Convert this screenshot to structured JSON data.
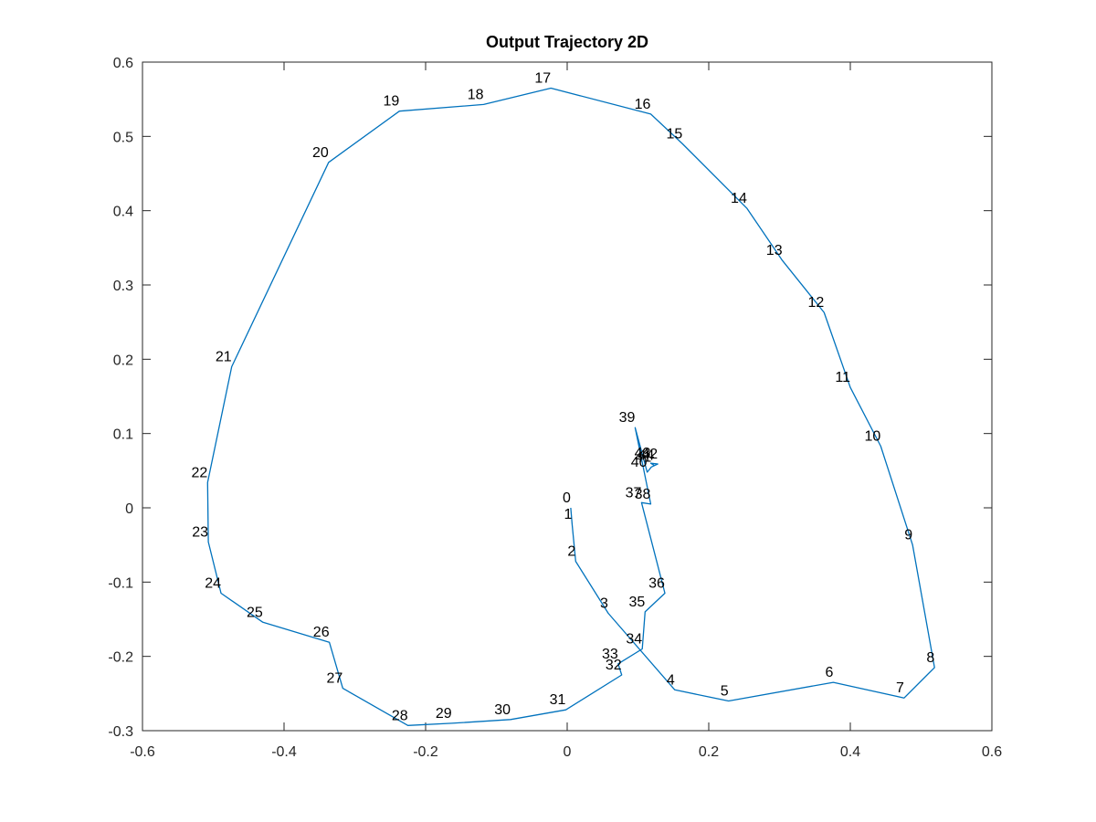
{
  "chart_data": {
    "type": "line",
    "title": "Output Trajectory 2D",
    "xlabel": "",
    "ylabel": "",
    "xlim": [
      -0.6,
      0.6
    ],
    "ylim": [
      -0.3,
      0.6
    ],
    "xticks": [
      -0.6,
      -0.4,
      -0.2,
      0,
      0.2,
      0.4,
      0.6
    ],
    "xtick_labels": [
      "-0.6",
      "-0.4",
      "-0.2",
      "0",
      "0.2",
      "0.4",
      "0.6"
    ],
    "yticks": [
      -0.3,
      -0.2,
      -0.1,
      0,
      0.1,
      0.2,
      0.3,
      0.4,
      0.5,
      0.6
    ],
    "ytick_labels": [
      "-0.3",
      "-0.2",
      "-0.1",
      "0",
      "0.1",
      "0.2",
      "0.3",
      "0.4",
      "0.5",
      "0.6"
    ],
    "grid": false,
    "line_color": "#0072BD",
    "series": [
      {
        "points": [
          {
            "label": "0",
            "x": 0.005,
            "y": 0.0
          },
          {
            "label": "1",
            "x": 0.007,
            "y": -0.022
          },
          {
            "label": "2",
            "x": 0.012,
            "y": -0.072
          },
          {
            "label": "3",
            "x": 0.058,
            "y": -0.142
          },
          {
            "label": "4",
            "x": 0.152,
            "y": -0.245
          },
          {
            "label": "5",
            "x": 0.228,
            "y": -0.26
          },
          {
            "label": "6",
            "x": 0.376,
            "y": -0.235
          },
          {
            "label": "7",
            "x": 0.476,
            "y": -0.256
          },
          {
            "label": "8",
            "x": 0.519,
            "y": -0.215
          },
          {
            "label": "9",
            "x": 0.488,
            "y": -0.05
          },
          {
            "label": "10",
            "x": 0.443,
            "y": 0.083
          },
          {
            "label": "11",
            "x": 0.4,
            "y": 0.162
          },
          {
            "label": "12",
            "x": 0.363,
            "y": 0.263
          },
          {
            "label": "13",
            "x": 0.304,
            "y": 0.333
          },
          {
            "label": "14",
            "x": 0.254,
            "y": 0.403
          },
          {
            "label": "15",
            "x": 0.163,
            "y": 0.49
          },
          {
            "label": "16",
            "x": 0.118,
            "y": 0.53
          },
          {
            "label": "17",
            "x": -0.023,
            "y": 0.565
          },
          {
            "label": "18",
            "x": -0.118,
            "y": 0.543
          },
          {
            "label": "19",
            "x": -0.237,
            "y": 0.534
          },
          {
            "label": "20",
            "x": -0.337,
            "y": 0.465
          },
          {
            "label": "21",
            "x": -0.474,
            "y": 0.19
          },
          {
            "label": "22",
            "x": -0.508,
            "y": 0.034
          },
          {
            "label": "23",
            "x": -0.507,
            "y": -0.046
          },
          {
            "label": "24",
            "x": -0.489,
            "y": -0.115
          },
          {
            "label": "25",
            "x": -0.43,
            "y": -0.154
          },
          {
            "label": "26",
            "x": -0.336,
            "y": -0.181
          },
          {
            "label": "27",
            "x": -0.317,
            "y": -0.243
          },
          {
            "label": "28",
            "x": -0.225,
            "y": -0.293
          },
          {
            "label": "29",
            "x": -0.163,
            "y": -0.29
          },
          {
            "label": "30",
            "x": -0.08,
            "y": -0.285
          },
          {
            "label": "31",
            "x": -0.002,
            "y": -0.272
          },
          {
            "label": "32",
            "x": 0.077,
            "y": -0.225
          },
          {
            "label": "33",
            "x": 0.072,
            "y": -0.21
          },
          {
            "label": "34",
            "x": 0.106,
            "y": -0.19
          },
          {
            "label": "35",
            "x": 0.11,
            "y": -0.14
          },
          {
            "label": "36",
            "x": 0.138,
            "y": -0.115
          },
          {
            "label": "37",
            "x": 0.105,
            "y": 0.007
          },
          {
            "label": "38",
            "x": 0.118,
            "y": 0.005
          },
          {
            "label": "39",
            "x": 0.096,
            "y": 0.108
          },
          {
            "label": "40",
            "x": 0.113,
            "y": 0.048
          },
          {
            "label": "41",
            "x": 0.119,
            "y": 0.055
          },
          {
            "label": "42",
            "x": 0.128,
            "y": 0.059
          },
          {
            "label": "43",
            "x": 0.118,
            "y": 0.06
          },
          {
            "label": "44",
            "x": 0.123,
            "y": 0.057
          }
        ]
      }
    ]
  }
}
